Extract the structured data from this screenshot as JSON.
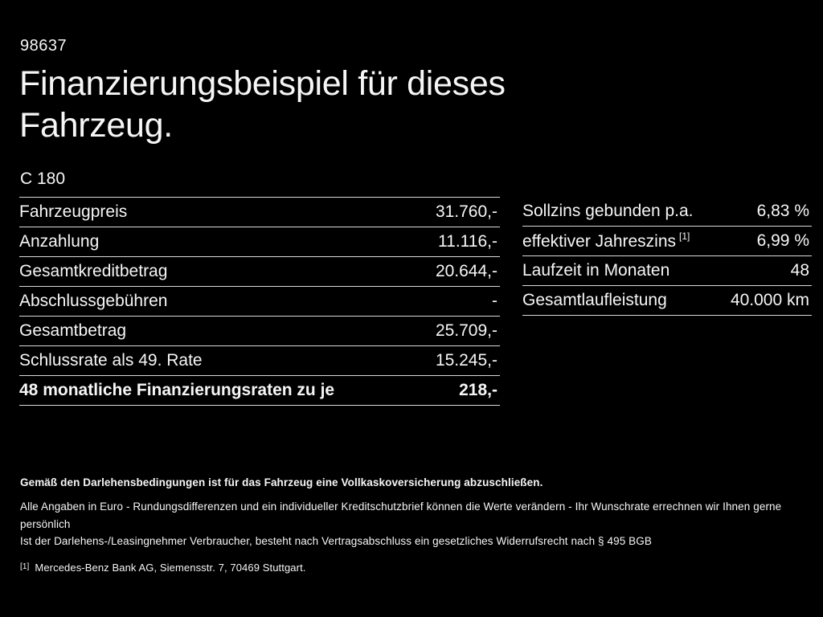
{
  "page": {
    "code": "98637",
    "title": "Finanzierungsbeispiel für dieses Fahrzeug.",
    "model": "C 180"
  },
  "colors": {
    "background": "#000000",
    "text": "#f6f6f6",
    "divider": "#d9d9d9"
  },
  "left_table": {
    "rows": [
      {
        "label": "Fahrzeugpreis",
        "value": "31.760,-"
      },
      {
        "label": "Anzahlung",
        "value": "11.116,-"
      },
      {
        "label": "Gesamtkreditbetrag",
        "value": "20.644,-"
      },
      {
        "label": "Abschlussgebühren",
        "value": "-"
      },
      {
        "label": "Gesamtbetrag",
        "value": "25.709,-"
      },
      {
        "label": "Schlussrate als 49. Rate",
        "value": "15.245,-"
      },
      {
        "label": "48 monatliche Finanzierungsraten zu je",
        "value": "218,-"
      }
    ]
  },
  "right_table": {
    "rows": [
      {
        "label": "Sollzins gebunden p.a.",
        "value": "6,83 %"
      },
      {
        "label": "effektiver Jahreszins",
        "sup": "[1]",
        "value": "6,99 %"
      },
      {
        "label": "Laufzeit in Monaten",
        "value": "48"
      },
      {
        "label": "Gesamtlaufleistung",
        "value": "40.000 km"
      }
    ]
  },
  "footer": {
    "insurance_note": "Gemäß den Darlehensbedingungen ist für das Fahrzeug eine Vollkaskoversicherung abzuschließen.",
    "disclaimer_line1": "Alle Angaben in Euro - Rundungsdifferenzen und ein individueller Kreditschutzbrief können die Werte verändern - Ihr Wunschrate errechnen wir Ihnen gerne persönlich",
    "disclaimer_line2": "Ist der Darlehens-/Leasingnehmer Verbraucher, besteht nach Vertragsabschluss ein gesetzliches Widerrufsrecht nach § 495 BGB",
    "footnote_marker": "[1]",
    "footnote_text": "Mercedes-Benz Bank AG, Siemensstr. 7, 70469 Stuttgart."
  }
}
